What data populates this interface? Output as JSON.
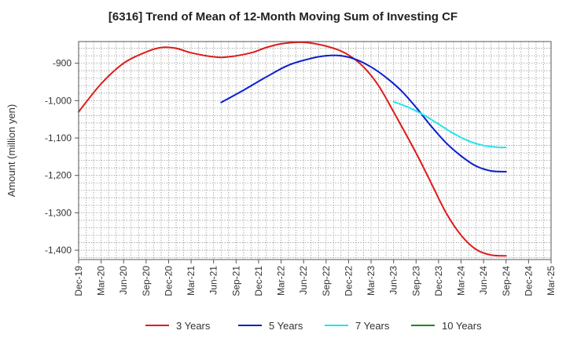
{
  "chart_data": {
    "type": "line",
    "title": "[6316]  Trend of Mean of 12-Month Moving Sum of Investing CF",
    "xlabel": "",
    "ylabel": "Amount (million yen)",
    "ylim": [
      -1425,
      -842
    ],
    "yticks": [
      -900,
      -1000,
      -1100,
      -1200,
      -1300,
      -1400
    ],
    "ytick_labels": [
      "-900",
      "-1,000",
      "-1,100",
      "-1,200",
      "-1,300",
      "-1,400"
    ],
    "x_start": "Dec-19",
    "x_months": 63,
    "x_ticks": [
      "Dec-19",
      "Mar-20",
      "Jun-20",
      "Sep-20",
      "Dec-20",
      "Mar-21",
      "Jun-21",
      "Sep-21",
      "Dec-21",
      "Mar-22",
      "Jun-22",
      "Sep-22",
      "Dec-22",
      "Mar-23",
      "Jun-23",
      "Sep-23",
      "Dec-23",
      "Mar-24",
      "Jun-24",
      "Sep-24",
      "Dec-24",
      "Mar-25"
    ],
    "grid": true,
    "legend_position": "bottom",
    "series": [
      {
        "name": "3 Years",
        "color": "#dd1c1c",
        "x": [
          0,
          3,
          6,
          9,
          11,
          13,
          15,
          18,
          20,
          23,
          25,
          27,
          29,
          31,
          34,
          36,
          38,
          40,
          42,
          45,
          47,
          49,
          51,
          53,
          55,
          57
        ],
        "values": [
          -1030,
          -955,
          -900,
          -870,
          -858,
          -860,
          -872,
          -883,
          -883,
          -872,
          -858,
          -848,
          -844,
          -846,
          -860,
          -878,
          -910,
          -960,
          -1030,
          -1140,
          -1220,
          -1300,
          -1360,
          -1398,
          -1413,
          -1415
        ]
      },
      {
        "name": "5 Years",
        "color": "#0a1ecc",
        "x": [
          19,
          22,
          25,
          28,
          31,
          33,
          35,
          37,
          39,
          41,
          43,
          45,
          47,
          49,
          51,
          53,
          55,
          57
        ],
        "values": [
          -1005,
          -972,
          -937,
          -905,
          -887,
          -880,
          -880,
          -890,
          -910,
          -938,
          -973,
          -1018,
          -1068,
          -1113,
          -1148,
          -1175,
          -1188,
          -1190
        ]
      },
      {
        "name": "7 Years",
        "color": "#22e5ee",
        "x": [
          42,
          44,
          46,
          48,
          50,
          52,
          54,
          56,
          57
        ],
        "values": [
          -1003,
          -1018,
          -1038,
          -1063,
          -1088,
          -1108,
          -1120,
          -1125,
          -1125
        ]
      },
      {
        "name": "10 Years",
        "color": "#1a8a1a",
        "x": [],
        "values": []
      }
    ]
  }
}
